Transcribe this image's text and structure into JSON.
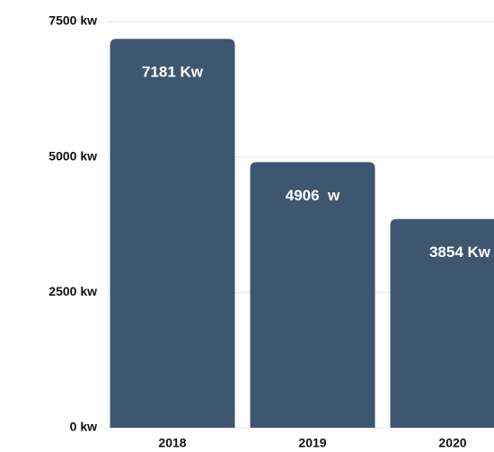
{
  "chart_data": {
    "type": "bar",
    "categories": [
      "2018",
      "2019",
      "2020"
    ],
    "values": [
      7181,
      4906,
      3854
    ],
    "value_labels": [
      "7181 Kw",
      "4906  w",
      "3854 Kw"
    ],
    "color": "#3f5670",
    "ylim": [
      0,
      7500
    ],
    "yticks": [
      {
        "value": 0,
        "label": "0 kw"
      },
      {
        "value": 2500,
        "label": "2500 kw"
      },
      {
        "value": 5000,
        "label": "5000 kw"
      },
      {
        "value": 7500,
        "label": "7500 kw"
      }
    ],
    "grid": true
  }
}
